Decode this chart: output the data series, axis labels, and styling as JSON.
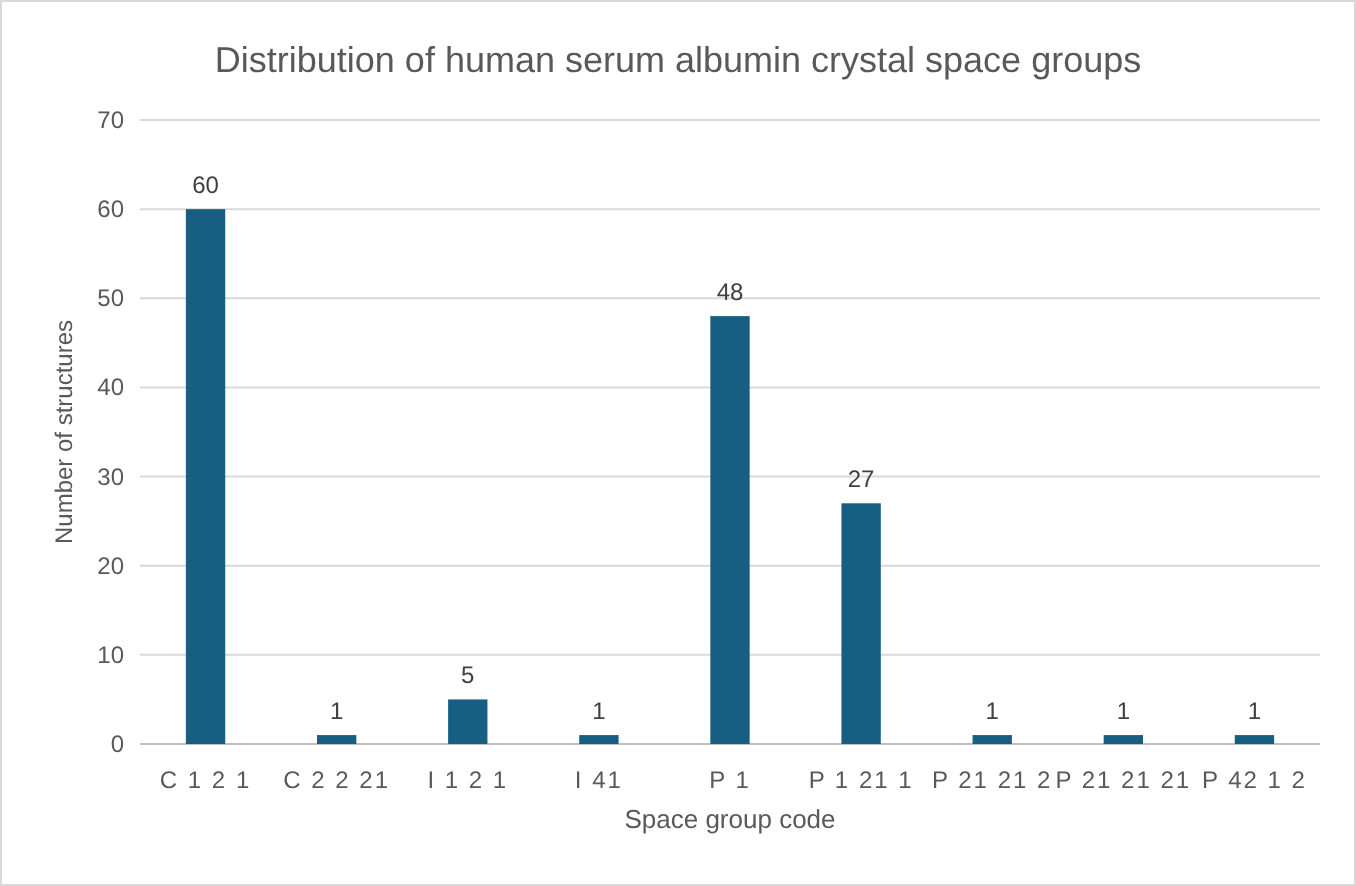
{
  "chart_data": {
    "type": "bar",
    "title": "Distribution of human serum albumin crystal space groups",
    "xlabel": "Space group code",
    "ylabel": "Number of structures",
    "categories": [
      "C 1 2 1",
      "C 2 2 21",
      "I 1 2 1",
      "I 41",
      "P 1",
      "P 1 21 1",
      "P 21 21 2",
      "P 21 21 21",
      "P 42 1 2"
    ],
    "values": [
      60,
      1,
      5,
      1,
      48,
      27,
      1,
      1,
      1
    ],
    "color": "#165e82",
    "ylim": [
      0,
      70
    ],
    "yticks": [
      0,
      10,
      20,
      30,
      40,
      50,
      60,
      70
    ],
    "grid": "y",
    "data_labels": true
  }
}
